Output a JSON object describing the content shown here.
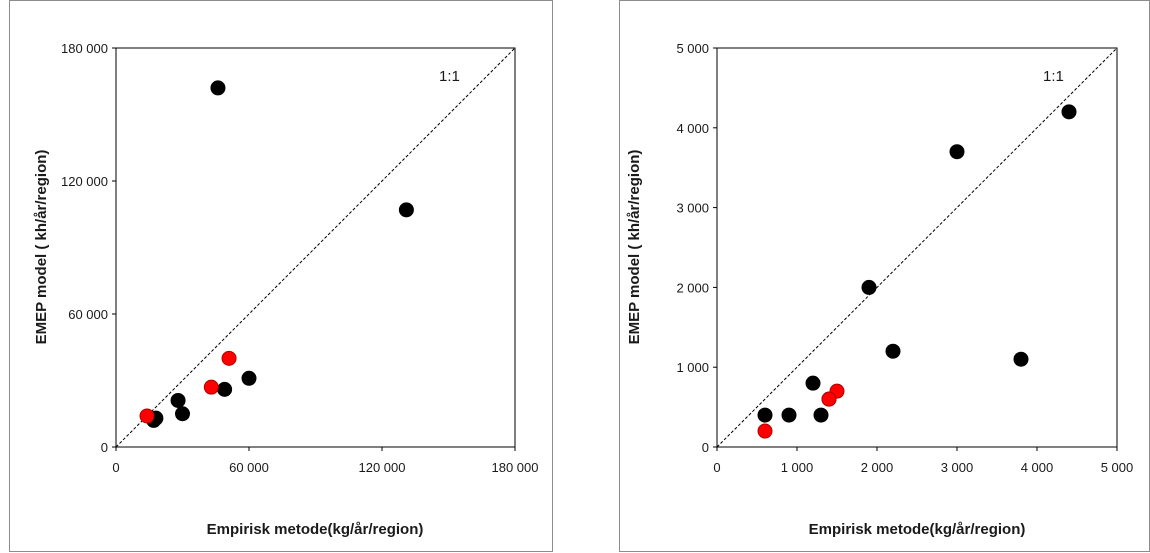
{
  "chart_data": [
    {
      "type": "scatter",
      "xlabel": "Empirisk metode(kg/år/region)",
      "ylabel": "EMEP model ( kh/år/region)",
      "xlim": [
        0,
        180000
      ],
      "ylim": [
        0,
        180000
      ],
      "xticks": [
        0,
        60000,
        120000,
        180000
      ],
      "yticks": [
        0,
        60000,
        120000,
        180000
      ],
      "xtick_labels": [
        "0",
        "60 000",
        "120 000",
        "180 000"
      ],
      "ytick_labels": [
        "0",
        "60 000",
        "120 000",
        "180 000"
      ],
      "reference_line": {
        "label": "1:1",
        "style": "dashed"
      },
      "grid": false,
      "series": [
        {
          "color": "#000000",
          "points": [
            [
              46000,
              162000
            ],
            [
              131000,
              107000
            ],
            [
              60000,
              31000
            ],
            [
              28000,
              21000
            ],
            [
              49000,
              26000
            ],
            [
              30000,
              15000
            ],
            [
              18000,
              13000
            ],
            [
              17000,
              12000
            ]
          ]
        },
        {
          "color": "#ff0000",
          "points": [
            [
              51000,
              40000
            ],
            [
              43000,
              27000
            ],
            [
              14000,
              14000
            ]
          ]
        }
      ]
    },
    {
      "type": "scatter",
      "xlabel": "Empirisk metode(kg/år/region)",
      "ylabel": "EMEP model ( kh/år/region)",
      "xlim": [
        0,
        5000
      ],
      "ylim": [
        0,
        5000
      ],
      "xticks": [
        0,
        1000,
        2000,
        3000,
        4000,
        5000
      ],
      "yticks": [
        0,
        1000,
        2000,
        3000,
        4000,
        5000
      ],
      "xtick_labels": [
        "0",
        "1 000",
        "2 000",
        "3 000",
        "4 000",
        "5 000"
      ],
      "ytick_labels": [
        "0",
        "1 000",
        "2 000",
        "3 000",
        "4 000",
        "5 000"
      ],
      "reference_line": {
        "label": "1:1",
        "style": "dashed"
      },
      "grid": false,
      "series": [
        {
          "color": "#000000",
          "points": [
            [
              4400,
              4200
            ],
            [
              3000,
              3700
            ],
            [
              1900,
              2000
            ],
            [
              2200,
              1200
            ],
            [
              3800,
              1100
            ],
            [
              1200,
              800
            ],
            [
              600,
              400
            ],
            [
              900,
              400
            ],
            [
              1300,
              400
            ],
            [
              1400,
              600
            ]
          ]
        },
        {
          "color": "#ff0000",
          "points": [
            [
              1500,
              700
            ],
            [
              1400,
              600
            ],
            [
              600,
              200
            ]
          ]
        }
      ]
    }
  ]
}
